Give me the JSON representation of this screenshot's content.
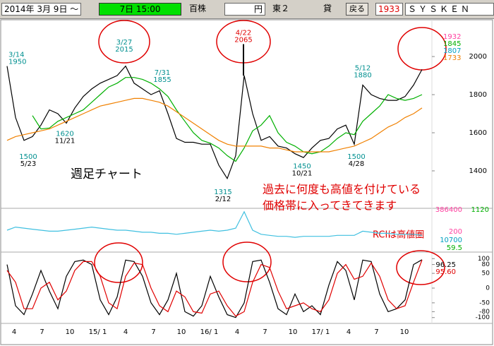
{
  "toolbar": {
    "date": "2014年 3月 9日 ～",
    "time": "7日 15:00",
    "unit": "百株",
    "currency": "円",
    "market": "東２",
    "lend": "貸",
    "back": "戻る",
    "code": "1933",
    "name": "ＳＹＳＫＥＮ"
  },
  "chart_data": [
    {
      "type": "line",
      "title": "週足チャート",
      "annotations": [
        "過去に何度も高値を付けている",
        "価格帯に入ってきてきます"
      ],
      "ylim": [
        1222,
        2167
      ],
      "yticks": [
        1400,
        1600,
        1800,
        2000
      ],
      "x_labels": [
        "4",
        "7",
        "10",
        "15/ 1",
        "4",
        "7",
        "10",
        "16/ 1",
        "4",
        "7",
        "10",
        "17/ 1",
        "4",
        "7",
        "10"
      ],
      "series": [
        {
          "name": "終値",
          "color": "#000000",
          "values": [
            1950,
            1680,
            1560,
            1580,
            1640,
            1720,
            1700,
            1650,
            1730,
            1790,
            1830,
            1860,
            1880,
            1900,
            1950,
            1860,
            1830,
            1800,
            1820,
            1700,
            1570,
            1550,
            1550,
            1540,
            1540,
            1430,
            1360,
            1480,
            1900,
            1700,
            1560,
            1580,
            1530,
            1520,
            1490,
            1470,
            1520,
            1560,
            1570,
            1620,
            1640,
            1540,
            1850,
            1800,
            1780,
            1770,
            1770,
            1790,
            1850,
            1932
          ]
        },
        {
          "name": "短期",
          "color": "#00b000",
          "values": [
            null,
            null,
            null,
            1690,
            1620,
            1625,
            1660,
            1680,
            1700,
            1720,
            1760,
            1800,
            1840,
            1860,
            1890,
            1890,
            1880,
            1860,
            1830,
            1790,
            1720,
            1660,
            1600,
            1560,
            1545,
            1520,
            1480,
            1450,
            1520,
            1610,
            1640,
            1690,
            1600,
            1550,
            1530,
            1500,
            1490,
            1500,
            1530,
            1570,
            1600,
            1590,
            1660,
            1700,
            1740,
            1800,
            1780,
            1770,
            1780,
            1800
          ]
        },
        {
          "name": "長期",
          "color": "#f08000",
          "values": [
            1560,
            1580,
            1590,
            1600,
            1610,
            1620,
            1640,
            1660,
            1680,
            1700,
            1720,
            1740,
            1750,
            1760,
            1770,
            1780,
            1780,
            1770,
            1760,
            1740,
            1710,
            1680,
            1650,
            1620,
            1590,
            1560,
            1540,
            1530,
            1530,
            1530,
            1530,
            1520,
            1520,
            1510,
            1500,
            1500,
            1500,
            1500,
            1500,
            1510,
            1520,
            1530,
            1550,
            1570,
            1600,
            1630,
            1650,
            1680,
            1700,
            1730
          ]
        }
      ],
      "point_labels": [
        {
          "date": "3/14",
          "price": 1950
        },
        {
          "date": "3/27",
          "price": 2015
        },
        {
          "date": "4/22",
          "price": 2065
        },
        {
          "date": "7/31",
          "price": 1855
        },
        {
          "date": "5/12",
          "price": 1880
        },
        {
          "date": "5/23",
          "price": 1500
        },
        {
          "date": "11/21",
          "price": 1620
        },
        {
          "date": "2/12",
          "price": 1315
        },
        {
          "date": "10/21",
          "price": 1450
        },
        {
          "date": "4/28",
          "price": 1500
        }
      ],
      "side_labels": [
        "1932",
        "1845",
        "1807",
        "1733"
      ]
    },
    {
      "type": "line",
      "ylim": [
        0,
        400000
      ],
      "series": [
        {
          "name": "出来高",
          "color": "#40c0e0",
          "values": [
            200000,
            230000,
            220000,
            210000,
            200000,
            190000,
            190000,
            200000,
            210000,
            220000,
            230000,
            220000,
            210000,
            200000,
            200000,
            190000,
            180000,
            180000,
            170000,
            170000,
            160000,
            170000,
            180000,
            190000,
            200000,
            190000,
            200000,
            220000,
            380000,
            200000,
            160000,
            150000,
            140000,
            140000,
            130000,
            140000,
            140000,
            140000,
            140000,
            150000,
            150000,
            150000,
            190000,
            180000,
            170000,
            170000,
            160000,
            160000,
            160000,
            150000
          ]
        }
      ],
      "side_labels": [
        "386400",
        "1120",
        "200",
        "10700",
        "59.5"
      ]
    },
    {
      "type": "line",
      "annotations": [
        "RCIは高値圏"
      ],
      "ylim": [
        -115,
        115
      ],
      "yticks": [
        -100,
        -80,
        -50,
        0,
        50,
        80,
        100
      ],
      "series": [
        {
          "name": "RCI短期",
          "color": "#000000",
          "last_label": "96.25",
          "values": [
            80,
            -60,
            -90,
            -20,
            60,
            -10,
            -70,
            40,
            90,
            95,
            80,
            -40,
            -90,
            -30,
            95,
            90,
            40,
            -50,
            -90,
            -40,
            50,
            -80,
            -95,
            -60,
            40,
            -30,
            -90,
            -100,
            -50,
            90,
            95,
            20,
            -70,
            -90,
            -20,
            -80,
            -60,
            -90,
            10,
            90,
            60,
            -40,
            95,
            90,
            -20,
            -80,
            -70,
            -40,
            80,
            96.25
          ]
        },
        {
          "name": "RCI長期",
          "color": "#e00000",
          "last_label": "95.60",
          "values": [
            60,
            20,
            -70,
            -70,
            0,
            20,
            -40,
            -10,
            60,
            90,
            90,
            40,
            -50,
            -70,
            40,
            85,
            80,
            0,
            -60,
            -80,
            -10,
            -30,
            -80,
            -85,
            -20,
            -10,
            -60,
            -95,
            -80,
            20,
            80,
            70,
            -10,
            -70,
            -60,
            -50,
            -70,
            -80,
            -40,
            50,
            80,
            30,
            40,
            85,
            40,
            -40,
            -70,
            -60,
            20,
            95.6
          ]
        }
      ]
    }
  ]
}
